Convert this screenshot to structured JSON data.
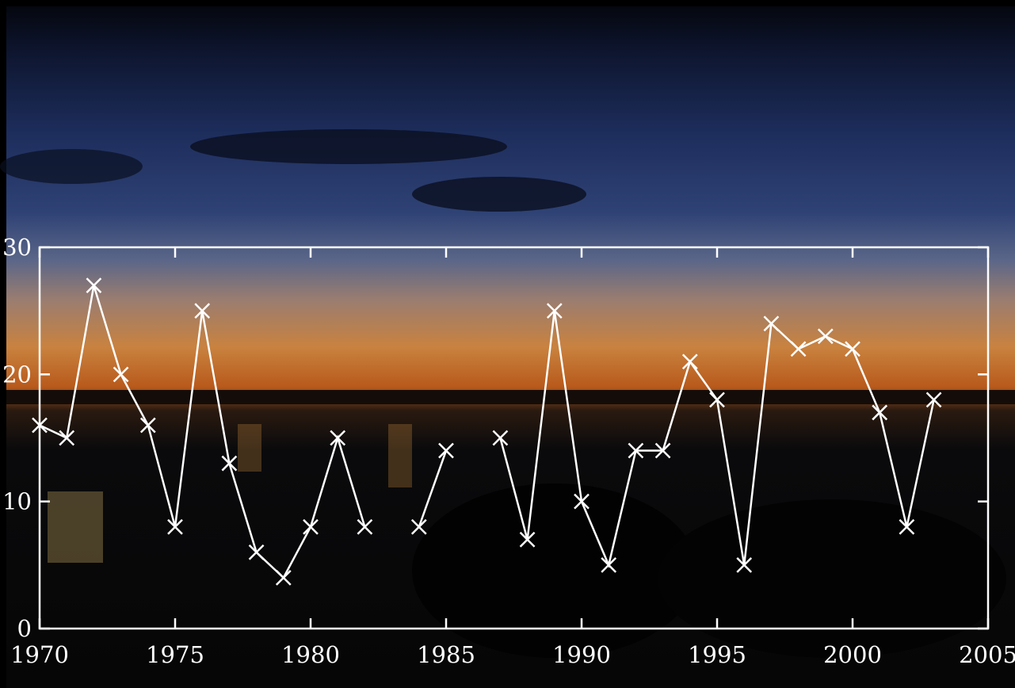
{
  "chart_data": {
    "type": "line",
    "marker": "x",
    "color": "#ffffff",
    "x": [
      1970,
      1971,
      1972,
      1973,
      1974,
      1975,
      1976,
      1977,
      1978,
      1979,
      1980,
      1981,
      1982,
      1983,
      1984,
      1985,
      1986,
      1987,
      1988,
      1989,
      1990,
      1991,
      1992,
      1993,
      1994,
      1995,
      1996,
      1997,
      1998,
      1999,
      2000,
      2001,
      2002,
      2003
    ],
    "values": [
      16,
      15,
      27,
      20,
      16,
      8,
      25,
      13,
      6,
      4,
      8,
      15,
      8,
      null,
      8,
      14,
      null,
      15,
      7,
      25,
      10,
      5,
      14,
      14,
      21,
      18,
      5,
      24,
      22,
      23,
      22,
      17,
      8,
      18
    ],
    "xlim": [
      1970,
      2005
    ],
    "xticks": [
      1970,
      1975,
      1980,
      1985,
      1990,
      1995,
      2000,
      2005
    ],
    "ylim": [
      0,
      30
    ],
    "yticks": [
      0,
      10,
      20,
      30
    ]
  }
}
